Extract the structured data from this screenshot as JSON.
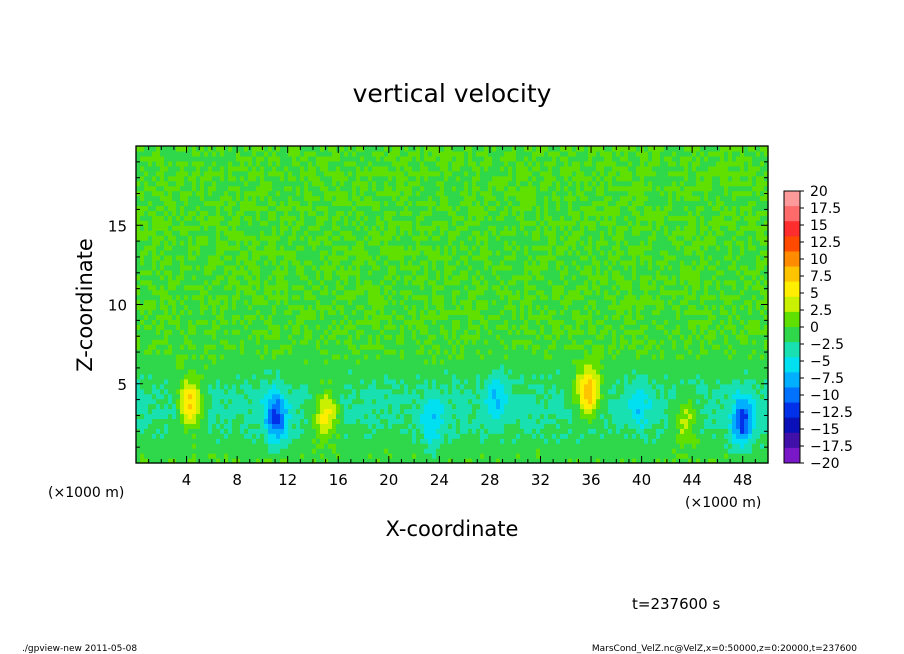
{
  "chart_data": {
    "type": "heatmap",
    "title": "vertical velocity",
    "xlabel": "X-coordinate",
    "ylabel": "Z-coordinate",
    "x_unit": "(×1000 m)",
    "y_unit": "(×1000 m)",
    "xlim": [
      0,
      50
    ],
    "ylim": [
      0,
      20
    ],
    "x_ticks": [
      "4",
      "8",
      "12",
      "16",
      "20",
      "24",
      "28",
      "32",
      "36",
      "40",
      "44",
      "48"
    ],
    "y_ticks": [
      "5",
      "10",
      "15"
    ],
    "colorbar": {
      "labels": [
        "20",
        "17.5",
        "15",
        "12.5",
        "10",
        "7.5",
        "5",
        "2.5",
        "0",
        "−2.5",
        "−5",
        "−7.5",
        "−10",
        "−12.5",
        "−15",
        "−17.5",
        "−20"
      ],
      "colors": [
        "#ff9a9a",
        "#ff6a6a",
        "#ff2d2d",
        "#ff4a00",
        "#ff8c00",
        "#ffc400",
        "#ffee00",
        "#c8f000",
        "#5fe000",
        "#2fd84a",
        "#18e0b0",
        "#00e0f0",
        "#00b0ff",
        "#0072ff",
        "#0030e8",
        "#0a10b8",
        "#4010a8",
        "#7a18c8"
      ]
    },
    "features": [
      {
        "kind": "updraft",
        "x": 4.3,
        "z": 3.8,
        "peak": 11
      },
      {
        "kind": "downdraft",
        "x": 11.1,
        "z": 2.9,
        "peak": -11
      },
      {
        "kind": "updraft",
        "x": 15.0,
        "z": 3.1,
        "peak": 9
      },
      {
        "kind": "downdraft",
        "x": 23.5,
        "z": 2.4,
        "peak": -5
      },
      {
        "kind": "downdraft",
        "x": 28.5,
        "z": 4.2,
        "peak": -5
      },
      {
        "kind": "updraft",
        "x": 35.8,
        "z": 4.5,
        "peak": 12.5
      },
      {
        "kind": "downdraft",
        "x": 39.8,
        "z": 3.6,
        "peak": -4
      },
      {
        "kind": "updraft",
        "x": 43.5,
        "z": 2.8,
        "peak": 6
      },
      {
        "kind": "downdraft",
        "x": 48.0,
        "z": 2.6,
        "peak": -11
      }
    ]
  },
  "footer": {
    "time": "t=237600 s",
    "program": "./gpview-new  2011-05-08",
    "source": "MarsCond_VelZ.nc@VelZ,x=0:50000,z=0:20000,t=237600"
  }
}
